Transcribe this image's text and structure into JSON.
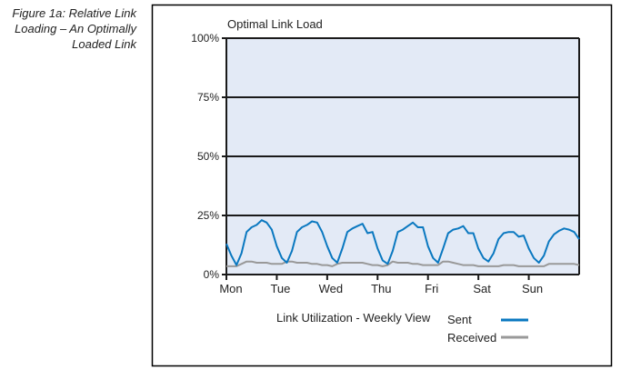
{
  "caption": [
    "Figure 1a: Relative Link",
    "Loading – An Optimally",
    "Loaded Link"
  ],
  "chart_data": {
    "type": "line",
    "title": "Optimal Link Load",
    "xlabel": "Link Utilization - Weekly View",
    "ylabel": "",
    "x_tick_labels": [
      "Mon",
      "Tue",
      "Wed",
      "Thu",
      "Fri",
      "Sat",
      "Sun"
    ],
    "y_tick_labels": [
      "0%",
      "25%",
      "50%",
      "75%",
      "100%"
    ],
    "ylim": [
      0,
      100
    ],
    "xlim_days": [
      0,
      7
    ],
    "grid": "horizontal",
    "legend_placement": "bottom-right",
    "background_color": "#e3eaf6",
    "series": [
      {
        "name": "Sent",
        "color": "#0a78c0",
        "values": [
          13,
          8,
          4,
          9,
          18,
          20,
          21,
          23,
          22,
          19,
          12,
          7,
          5,
          10,
          18,
          20,
          21,
          22.5,
          22,
          18,
          12,
          7,
          5,
          11,
          18,
          19.5,
          20.5,
          21.5,
          17.5,
          18,
          11,
          6,
          4.5,
          10,
          18,
          19,
          20.5,
          22,
          20,
          20,
          12,
          7,
          5,
          11,
          17.5,
          19,
          19.5,
          20.5,
          17.5,
          17.5,
          11,
          7,
          5.5,
          9,
          15,
          17.5,
          18,
          18,
          16,
          16.5,
          11,
          7,
          5,
          8,
          14,
          17,
          18.5,
          19.5,
          19,
          18,
          15
        ]
      },
      {
        "name": "Received",
        "color": "#999999",
        "values": [
          3.5,
          3.5,
          3.5,
          4.5,
          5.5,
          5.5,
          5,
          5,
          5,
          4.5,
          4.5,
          4.5,
          5.5,
          5.5,
          5,
          5,
          5,
          4.5,
          4.5,
          4,
          4,
          3.5,
          4.5,
          5,
          5,
          5,
          5,
          5,
          4.5,
          4,
          4,
          3.5,
          4,
          5.5,
          5,
          5,
          5,
          4.5,
          4.5,
          4,
          4,
          4,
          4,
          5.5,
          5.5,
          5,
          4.5,
          4,
          4,
          4,
          3.5,
          3.5,
          3.5,
          3.5,
          3.5,
          4,
          4,
          4,
          3.5,
          3.5,
          3.5,
          3.5,
          3.5,
          3.5,
          4.5,
          4.5,
          4.5,
          4.5,
          4.5,
          4.5,
          4
        ]
      }
    ]
  }
}
